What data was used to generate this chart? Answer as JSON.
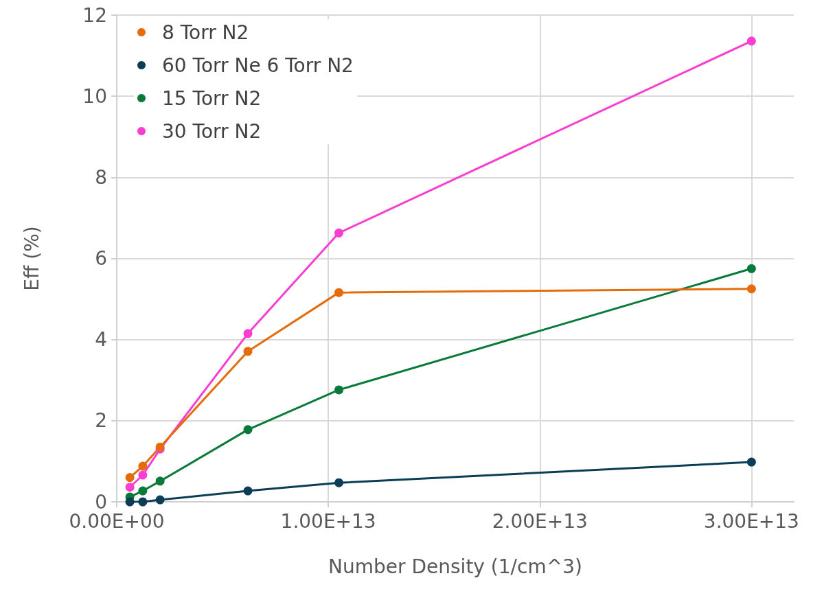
{
  "chart_data": {
    "type": "line",
    "xlabel": "Number Density (1/cm^3)",
    "ylabel": "Eff (%)",
    "x": [
      620000000000.0,
      1230000000000.0,
      2050000000000.0,
      6200000000000.0,
      10500000000000.0,
      30000000000000.0
    ],
    "series": [
      {
        "name": "8 Torr N2",
        "color": "#e46c0a",
        "values": [
          0.6,
          0.88,
          1.35,
          3.71,
          5.16,
          5.25
        ]
      },
      {
        "name": "60 Torr Ne 6 Torr N2",
        "color": "#0b3d57",
        "values": [
          0.0,
          0.0,
          0.05,
          0.27,
          0.47,
          0.98
        ]
      },
      {
        "name": "15 Torr N2",
        "color": "#0a7a3a",
        "values": [
          0.12,
          0.27,
          0.51,
          1.78,
          2.76,
          5.75
        ]
      },
      {
        "name": "30 Torr N2",
        "color": "#fa3ed2",
        "values": [
          0.36,
          0.66,
          1.3,
          4.15,
          6.63,
          11.36
        ]
      }
    ],
    "xlim": [
      0,
      32000000000000.0
    ],
    "xticks": [
      {
        "value": 0,
        "label": "0.00E+00"
      },
      {
        "value": 10000000000000.0,
        "label": "1.00E+13"
      },
      {
        "value": 20000000000000.0,
        "label": "2.00E+13"
      },
      {
        "value": 30000000000000.0,
        "label": "3.00E+13"
      }
    ],
    "ylim": [
      0,
      12
    ],
    "yticks": [
      0,
      2,
      4,
      6,
      8,
      10,
      12
    ],
    "grid": true,
    "legend": "top left",
    "marker": "circle",
    "line_style": "solid"
  }
}
